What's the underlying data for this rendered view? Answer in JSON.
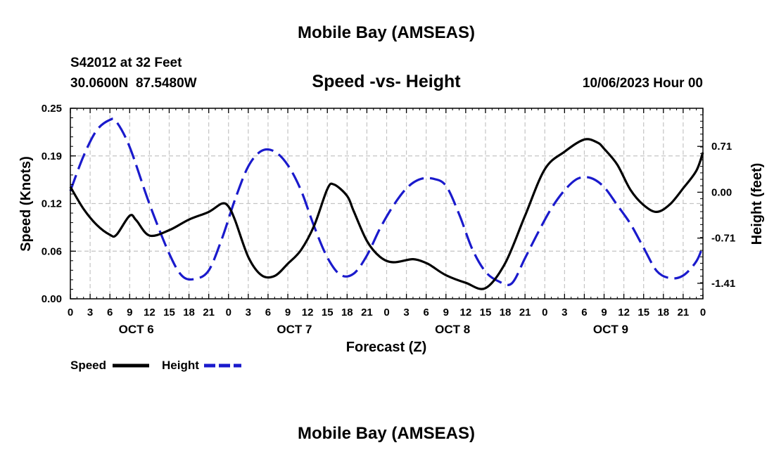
{
  "chart_data": {
    "type": "line",
    "title": "Mobile Bay (AMSEAS)",
    "subtitle": "Speed -vs- Height",
    "station": "S42012 at 32 Feet",
    "location": "30.0600N  87.5480W",
    "run": "10/06/2023 Hour 00",
    "xlabel": "Forecast (Z)",
    "ylabel_left": "Speed (Knots)",
    "ylabel_right": "Height (feet)",
    "x_range_hours": [
      0,
      96
    ],
    "x_tick_labels": [
      "0",
      "3",
      "6",
      "9",
      "12",
      "15",
      "18",
      "21",
      "0",
      "3",
      "6",
      "9",
      "12",
      "15",
      "18",
      "21",
      "0",
      "3",
      "6",
      "9",
      "12",
      "15",
      "18",
      "21",
      "0",
      "3",
      "6",
      "9",
      "12",
      "15",
      "18",
      "21",
      "0"
    ],
    "day_labels": [
      "OCT 6",
      "OCT 7",
      "OCT 8",
      "OCT 9"
    ],
    "ylim_left": [
      0,
      0.25
    ],
    "y_ticks_left": [
      "0.00",
      "0.06",
      "0.12",
      "0.19",
      "0.25"
    ],
    "ylim_right": [
      -1.65,
      1.3
    ],
    "y_ticks_right": [
      "-1.41",
      "-0.71",
      "0.00",
      "0.71"
    ],
    "y_ticks_right_values": [
      -1.41,
      -0.71,
      0.0,
      0.71
    ],
    "grid": true,
    "series": [
      {
        "name": "Speed",
        "axis": "left",
        "color": "#000000",
        "style": "solid",
        "x": [
          0,
          2,
          4,
          6,
          7,
          9,
          10,
          12,
          15,
          18,
          21,
          23,
          24,
          25,
          27,
          29,
          31,
          33,
          35,
          37,
          39,
          40,
          42,
          43,
          45,
          47,
          49,
          52,
          54,
          55,
          57,
          60,
          63,
          66,
          69,
          72,
          75,
          78,
          80,
          81,
          83,
          85,
          87,
          89,
          91,
          93,
          95,
          96
        ],
        "values": [
          0.147,
          0.118,
          0.097,
          0.084,
          0.084,
          0.109,
          0.103,
          0.083,
          0.09,
          0.104,
          0.114,
          0.125,
          0.121,
          0.103,
          0.055,
          0.031,
          0.03,
          0.046,
          0.064,
          0.096,
          0.144,
          0.15,
          0.135,
          0.115,
          0.076,
          0.055,
          0.048,
          0.052,
          0.047,
          0.042,
          0.031,
          0.021,
          0.014,
          0.047,
          0.109,
          0.17,
          0.193,
          0.209,
          0.205,
          0.197,
          0.176,
          0.143,
          0.123,
          0.114,
          0.124,
          0.145,
          0.168,
          0.192
        ]
      },
      {
        "name": "Height",
        "axis": "right",
        "color": "#1a1acc",
        "style": "dashed",
        "x": [
          0,
          2,
          4,
          6,
          7,
          9,
          12,
          15,
          17,
          19,
          21,
          23,
          25,
          27,
          29,
          31,
          33,
          35,
          37,
          39,
          41,
          43,
          45,
          47,
          49,
          51,
          53,
          55,
          57,
          59,
          61,
          63,
          65,
          67,
          69,
          71,
          73,
          75,
          77,
          79,
          81,
          83,
          85,
          87,
          89,
          91,
          93,
          95,
          96
        ],
        "values": [
          0.02,
          0.56,
          0.96,
          1.12,
          1.09,
          0.7,
          -0.18,
          -0.95,
          -1.3,
          -1.34,
          -1.21,
          -0.72,
          -0.11,
          0.4,
          0.64,
          0.63,
          0.42,
          0.03,
          -0.53,
          -1.01,
          -1.28,
          -1.26,
          -0.98,
          -0.56,
          -0.21,
          0.06,
          0.2,
          0.21,
          0.1,
          -0.34,
          -0.88,
          -1.23,
          -1.38,
          -1.41,
          -1.02,
          -0.62,
          -0.25,
          0.03,
          0.21,
          0.22,
          0.08,
          -0.2,
          -0.49,
          -0.86,
          -1.22,
          -1.33,
          -1.29,
          -1.07,
          -0.83
        ]
      }
    ],
    "legend": [
      {
        "label": "Speed",
        "color": "#000000",
        "style": "solid"
      },
      {
        "label": "Height",
        "color": "#1a1acc",
        "style": "dashed"
      }
    ],
    "repeated_title": "Mobile Bay (AMSEAS)"
  }
}
